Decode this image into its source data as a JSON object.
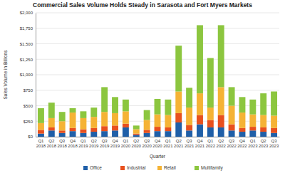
{
  "chart_data": {
    "type": "bar",
    "stacked": true,
    "grid": true,
    "legend": "bottom",
    "title": "Commercial Sales Volume Holds Steady in Sarasota and Fort Myers Markets",
    "x_label": "Quarter",
    "y_label": "Sales Volume in Billions",
    "categories": [
      "Q1 2018",
      "Q2 2018",
      "Q3 2018",
      "Q4 2018",
      "Q1 2019",
      "Q2 2019",
      "Q3 2019",
      "Q4 2019",
      "Q1 2020",
      "Q2 2020",
      "Q3 2020",
      "Q4 2020",
      "Q1 2021",
      "Q2 2021",
      "Q3 2021",
      "Q4 2021",
      "Q1 2022",
      "Q2 2022",
      "Q3 2022",
      "Q4 2022",
      "Q1 2023",
      "Q2 2023",
      "Q3 2023"
    ],
    "ylim": [
      0,
      2000
    ],
    "yticks": [
      {
        "value": 0,
        "label": "$0"
      },
      {
        "value": 250,
        "label": "$250"
      },
      {
        "value": 500,
        "label": "$500"
      },
      {
        "value": 750,
        "label": "$750"
      },
      {
        "value": 1000,
        "label": "$1,000"
      },
      {
        "value": 1250,
        "label": "$1,250"
      },
      {
        "value": 1500,
        "label": "$1,500"
      },
      {
        "value": 1750,
        "label": "$1,750"
      },
      {
        "value": 2000,
        "label": "$2,000"
      }
    ],
    "series": [
      {
        "name": "Office",
        "color": "#1f5fa8",
        "values": [
          50,
          100,
          60,
          90,
          60,
          80,
          90,
          100,
          150,
          30,
          60,
          90,
          90,
          230,
          100,
          200,
          150,
          150,
          100,
          80,
          100,
          80,
          60
        ]
      },
      {
        "name": "Industrial",
        "color": "#e8501e",
        "values": [
          60,
          50,
          40,
          50,
          60,
          60,
          80,
          80,
          60,
          20,
          50,
          70,
          60,
          150,
          90,
          150,
          120,
          200,
          100,
          60,
          60,
          70,
          80
        ]
      },
      {
        "name": "Retail",
        "color": "#f5b335",
        "values": [
          110,
          150,
          150,
          250,
          180,
          180,
          230,
          200,
          200,
          70,
          160,
          200,
          200,
          350,
          280,
          350,
          200,
          450,
          300,
          250,
          200,
          200,
          200
        ]
      },
      {
        "name": "Multifamily",
        "color": "#8cc63f",
        "values": [
          240,
          250,
          150,
          70,
          110,
          150,
          400,
          260,
          190,
          60,
          160,
          250,
          250,
          740,
          320,
          1100,
          800,
          1000,
          300,
          250,
          240,
          350,
          390
        ]
      }
    ]
  }
}
